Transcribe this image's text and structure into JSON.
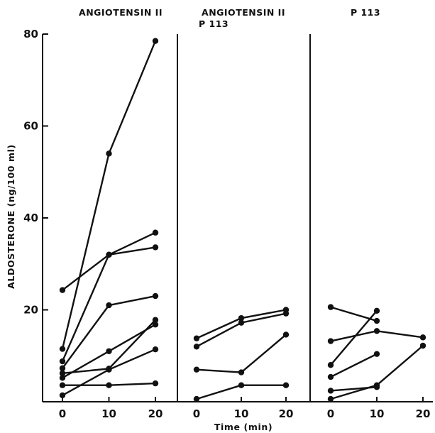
{
  "chart_data": {
    "type": "line",
    "ylabel": "ALDOSTERONE  (ng/100 ml)",
    "xlabel": "Time (min)",
    "ylim": [
      0,
      80
    ],
    "yticks": [
      0,
      20,
      40,
      60,
      80
    ],
    "ytick_labels": [
      "20",
      "40",
      "60",
      "80"
    ],
    "x": [
      0,
      10,
      20
    ],
    "xtick_labels": [
      "0",
      "10",
      "20"
    ],
    "grid": false,
    "panels": [
      {
        "title_lines": [
          "ANGIOTENSIN II"
        ],
        "series": [
          {
            "values": [
              11.5,
              54,
              78.5
            ]
          },
          {
            "values": [
              24.3,
              32,
              33.6
            ]
          },
          {
            "values": [
              8.8,
              32,
              36.8
            ]
          },
          {
            "values": [
              7.3,
              21,
              23
            ]
          },
          {
            "values": [
              6.2,
              7.2,
              17.8
            ]
          },
          {
            "values": [
              5.2,
              11,
              16.8
            ]
          },
          {
            "values": [
              3.6,
              3.6,
              4
            ]
          },
          {
            "values": [
              1.4,
              7,
              11.4
            ]
          }
        ]
      },
      {
        "title_lines": [
          "ANGIOTENSIN II",
          "P 113"
        ],
        "series": [
          {
            "values": [
              13.8,
              18.2,
              20
            ]
          },
          {
            "values": [
              12,
              17.2,
              19.2
            ]
          },
          {
            "values": [
              7,
              6.4,
              14.6
            ]
          },
          {
            "values": [
              0.6,
              3.6,
              3.6
            ]
          }
        ]
      },
      {
        "title_lines": [
          "P 113"
        ],
        "series": [
          {
            "values": [
              20.6,
              17.6
            ]
          },
          {
            "values": [
              13.2,
              15.4,
              14
            ]
          },
          {
            "values": [
              8,
              19.8
            ]
          },
          {
            "values": [
              5.4,
              10.4
            ]
          },
          {
            "values": [
              2.4,
              3.2
            ]
          },
          {
            "values": [
              0.6,
              3.6,
              12.2
            ]
          }
        ]
      }
    ]
  }
}
